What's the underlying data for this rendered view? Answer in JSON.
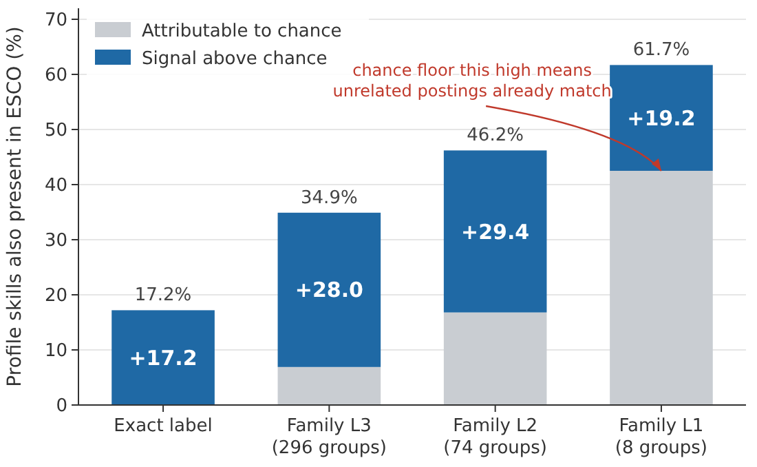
{
  "chart_data": {
    "type": "bar",
    "stacked": true,
    "ylabel": "Profile skills also present in ESCO (%)",
    "categories": [
      "Exact label",
      "Family L3\n(296 groups)",
      "Family L2\n(74 groups)",
      "Family L1\n(8 groups)"
    ],
    "series": [
      {
        "name": "Attributable to chance",
        "color": "#c9cdd2",
        "values": [
          0,
          6.9,
          16.8,
          42.5
        ]
      },
      {
        "name": "Signal above chance",
        "color": "#1f69a5",
        "values": [
          17.2,
          28.0,
          29.4,
          19.2
        ],
        "value_labels": [
          "+17.2",
          "+28.0",
          "+29.4",
          "+19.2"
        ]
      }
    ],
    "totals": [
      "17.2%",
      "34.9%",
      "46.2%",
      "61.7%"
    ],
    "ylim": [
      0,
      72
    ],
    "yticks": [
      0,
      10,
      20,
      30,
      40,
      50,
      60,
      70
    ],
    "grid": "y",
    "legend": "top left",
    "annotations": [
      {
        "text": "chance floor this high means\nunrelated postings already match",
        "x": "Family L1\n(8 groups)",
        "y": 42.5
      }
    ]
  }
}
